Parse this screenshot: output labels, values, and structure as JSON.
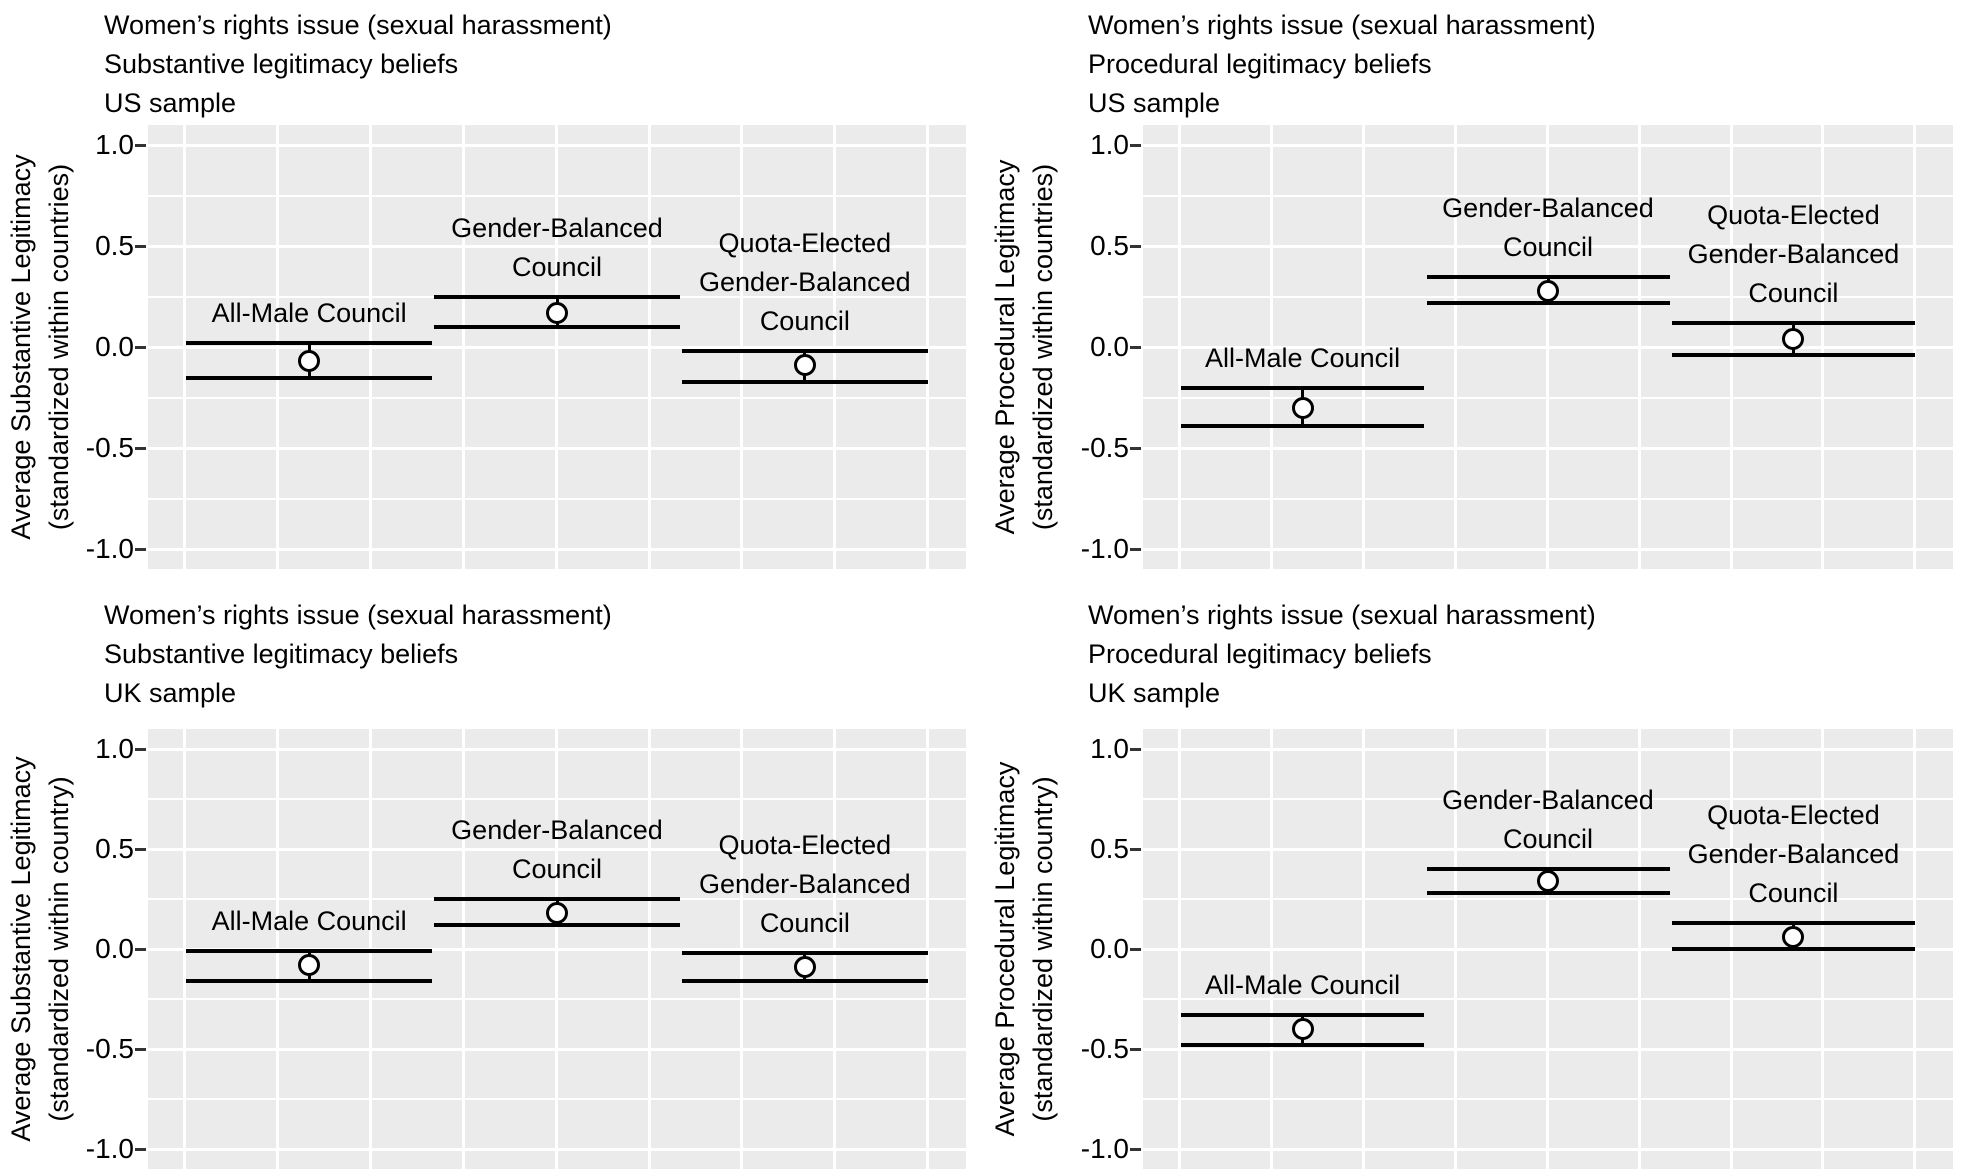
{
  "figure": {
    "background": "#ffffff",
    "panel_background": "#ebebeb",
    "grid_color": "#ffffff",
    "text_color": "#000000",
    "errorbar_color": "#000000",
    "point_fill": "#ffffff",
    "point_stroke": "#000000"
  },
  "chart_data": [
    {
      "type": "scatter",
      "title_lines": [
        "Women’s rights issue (sexual harassment)",
        " Substantive legitimacy beliefs",
        " US sample"
      ],
      "ylabel_lines": [
        "Average Substantive Legitimacy",
        "(standardized within countries)"
      ],
      "ylim": [
        -1.1,
        1.1
      ],
      "yticks": [
        1.0,
        0.5,
        0.0,
        -0.5,
        -1.0
      ],
      "ytick_labels": [
        "1.0",
        "0.5",
        "0.0",
        "-0.5",
        "-1.0"
      ],
      "yminor": [
        0.75,
        0.25,
        -0.25,
        -0.75
      ],
      "grid": "major+minor",
      "legend": "none",
      "categories": [
        "All-Male Council",
        "Gender-Balanced\nCouncil",
        "Quota-Elected\nGender-Balanced\nCouncil"
      ],
      "points": [
        {
          "label": "All-Male Council",
          "mean": -0.07,
          "ci_low": -0.15,
          "ci_high": 0.02
        },
        {
          "label": "Gender-Balanced Council",
          "mean": 0.17,
          "ci_low": 0.1,
          "ci_high": 0.25
        },
        {
          "label": "Quota-Elected Gender-Balanced Council",
          "mean": -0.09,
          "ci_low": -0.17,
          "ci_high": -0.02
        }
      ]
    },
    {
      "type": "scatter",
      "title_lines": [
        "Women’s rights issue (sexual harassment)",
        " Procedural legitimacy beliefs",
        " US sample"
      ],
      "ylabel_lines": [
        "Average Procedural Legitimacy",
        "(standardized within countries)"
      ],
      "ylim": [
        -1.1,
        1.1
      ],
      "yticks": [
        1.0,
        0.5,
        0.0,
        -0.5,
        -1.0
      ],
      "ytick_labels": [
        "1.0",
        "0.5",
        "0.0",
        "-0.5",
        "-1.0"
      ],
      "yminor": [
        0.75,
        0.25,
        -0.25,
        -0.75
      ],
      "grid": "major+minor",
      "legend": "none",
      "categories": [
        "All-Male Council",
        "Gender-Balanced\nCouncil",
        "Quota-Elected\nGender-Balanced\nCouncil"
      ],
      "points": [
        {
          "label": "All-Male Council",
          "mean": -0.3,
          "ci_low": -0.39,
          "ci_high": -0.2
        },
        {
          "label": "Gender-Balanced Council",
          "mean": 0.28,
          "ci_low": 0.22,
          "ci_high": 0.35
        },
        {
          "label": "Quota-Elected Gender-Balanced Council",
          "mean": 0.04,
          "ci_low": -0.04,
          "ci_high": 0.12
        }
      ]
    },
    {
      "type": "scatter",
      "title_lines": [
        "Women’s rights issue (sexual harassment)",
        " Substantive legitimacy beliefs",
        " UK sample"
      ],
      "ylabel_lines": [
        "Average Substantive Legitimacy",
        "(standardized within country)"
      ],
      "ylim": [
        -1.1,
        1.1
      ],
      "yticks": [
        1.0,
        0.5,
        0.0,
        -0.5,
        -1.0
      ],
      "ytick_labels": [
        "1.0",
        "0.5",
        "0.0",
        "-0.5",
        "-1.0"
      ],
      "yminor": [
        0.75,
        0.25,
        -0.25,
        -0.75
      ],
      "grid": "major+minor",
      "legend": "none",
      "categories": [
        "All-Male Council",
        "Gender-Balanced\nCouncil",
        "Quota-Elected\nGender-Balanced\nCouncil"
      ],
      "points": [
        {
          "label": "All-Male Council",
          "mean": -0.08,
          "ci_low": -0.16,
          "ci_high": -0.01
        },
        {
          "label": "Gender-Balanced Council",
          "mean": 0.18,
          "ci_low": 0.12,
          "ci_high": 0.25
        },
        {
          "label": "Quota-Elected Gender-Balanced Council",
          "mean": -0.09,
          "ci_low": -0.16,
          "ci_high": -0.02
        }
      ]
    },
    {
      "type": "scatter",
      "title_lines": [
        "Women’s rights issue (sexual harassment)",
        " Procedural legitimacy beliefs",
        " UK sample"
      ],
      "ylabel_lines": [
        "Average Procedural Legitimacy",
        "(standardized within country)"
      ],
      "ylim": [
        -1.1,
        1.1
      ],
      "yticks": [
        1.0,
        0.5,
        0.0,
        -0.5,
        -1.0
      ],
      "ytick_labels": [
        "1.0",
        "0.5",
        "0.0",
        "-0.5",
        "-1.0"
      ],
      "yminor": [
        0.75,
        0.25,
        -0.25,
        -0.75
      ],
      "grid": "major+minor",
      "legend": "none",
      "categories": [
        "All-Male Council",
        "Gender-Balanced\nCouncil",
        "Quota-Elected\nGender-Balanced\nCouncil"
      ],
      "points": [
        {
          "label": "All-Male Council",
          "mean": -0.4,
          "ci_low": -0.48,
          "ci_high": -0.33
        },
        {
          "label": "Gender-Balanced Council",
          "mean": 0.34,
          "ci_low": 0.28,
          "ci_high": 0.4
        },
        {
          "label": "Quota-Elected Gender-Balanced Council",
          "mean": 0.06,
          "ci_low": 0.0,
          "ci_high": 0.13
        }
      ]
    }
  ]
}
